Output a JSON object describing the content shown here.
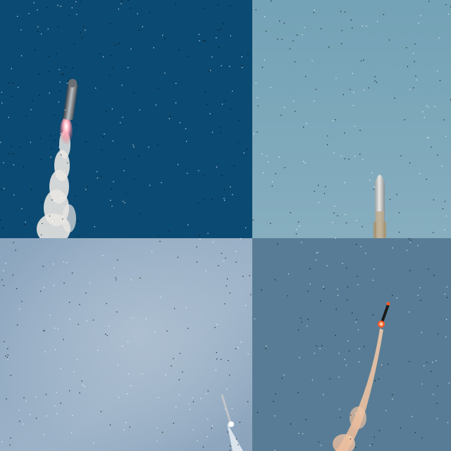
{
  "panels": [
    {
      "id": "p1",
      "sky": "#0b4a72",
      "rocket_color": "#8a9096",
      "flame": "#ff5a6a",
      "plume": "#e9e6e2"
    },
    {
      "id": "p2",
      "sky": "#7aa6b8",
      "rocket_color": "#c8c8c4"
    },
    {
      "id": "p3",
      "sky": "#8aa5bf",
      "rocket_color": "#c4c8cc",
      "plume": "#e8eef4"
    },
    {
      "id": "p4",
      "sky": "#587c95",
      "rocket_color": "#1a1a1a",
      "flame": "#ff5a2a",
      "plume": "#f0c8a8"
    }
  ]
}
